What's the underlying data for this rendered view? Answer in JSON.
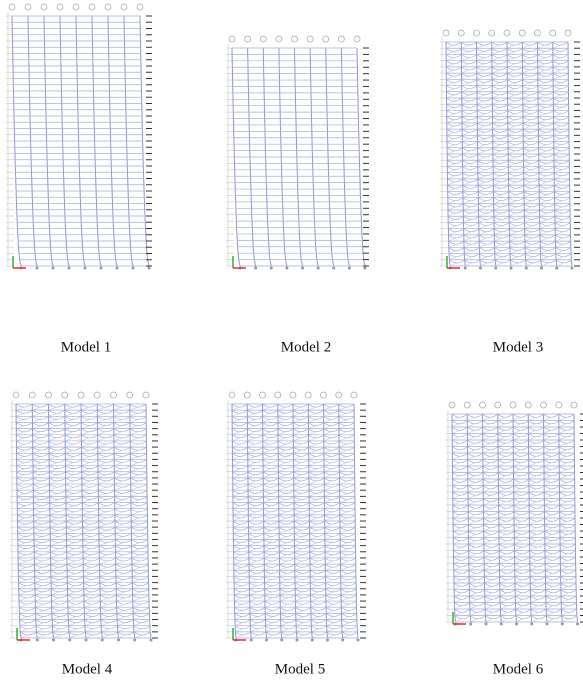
{
  "figure": {
    "panels": [
      {
        "caption": "Model 1"
      },
      {
        "caption": "Model 2"
      },
      {
        "caption": "Model 3"
      },
      {
        "caption": "Model 4"
      },
      {
        "caption": "Model 5"
      },
      {
        "caption": "Model 6"
      }
    ]
  }
}
